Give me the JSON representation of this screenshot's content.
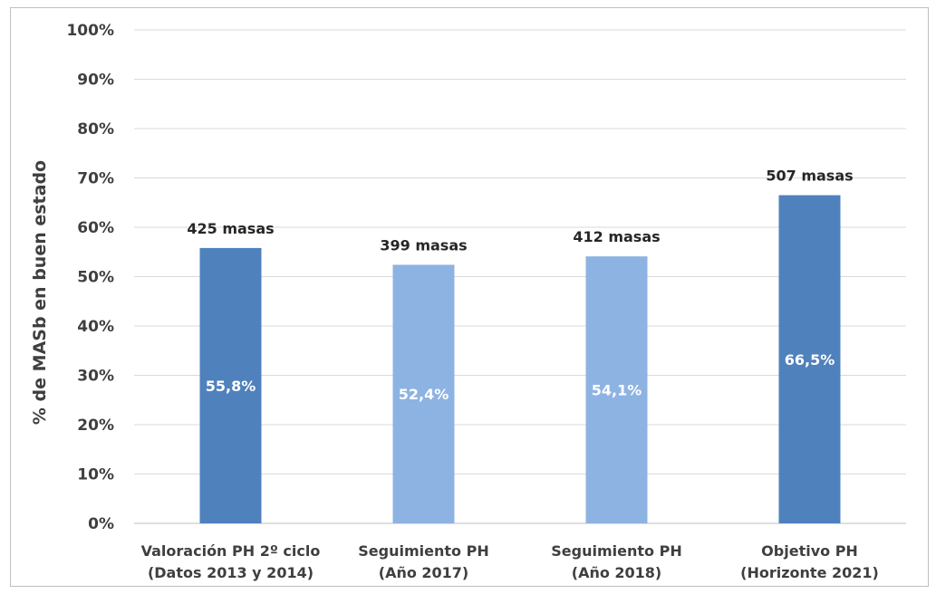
{
  "chart_data": {
    "type": "bar",
    "title": "",
    "xlabel": "",
    "ylabel": "% de MASb en buen estado",
    "ylim": [
      0,
      100
    ],
    "yticks": [
      "0%",
      "10%",
      "20%",
      "30%",
      "40%",
      "50%",
      "60%",
      "70%",
      "80%",
      "90%",
      "100%"
    ],
    "grid": true,
    "categories": [
      [
        "Valoración PH 2º ciclo",
        "(Datos 2013 y 2014)"
      ],
      [
        "Seguimiento PH",
        "(Año 2017)"
      ],
      [
        "Seguimiento PH",
        "(Año 2018)"
      ],
      [
        "Objetivo PH",
        "(Horizonte 2021)"
      ]
    ],
    "values": [
      55.8,
      52.4,
      54.1,
      66.5
    ],
    "value_labels": [
      "55,8%",
      "52,4%",
      "54,1%",
      "66,5%"
    ],
    "top_labels": [
      "425 masas",
      "399 masas",
      "412 masas",
      "507 masas"
    ],
    "bar_colors": [
      "#4f81bd",
      "#8db3e2",
      "#8db3e2",
      "#4f81bd"
    ],
    "value_label_color": "#ffffff",
    "text_color": "#3f3f3f",
    "grid_color": "#d9d9d9"
  }
}
